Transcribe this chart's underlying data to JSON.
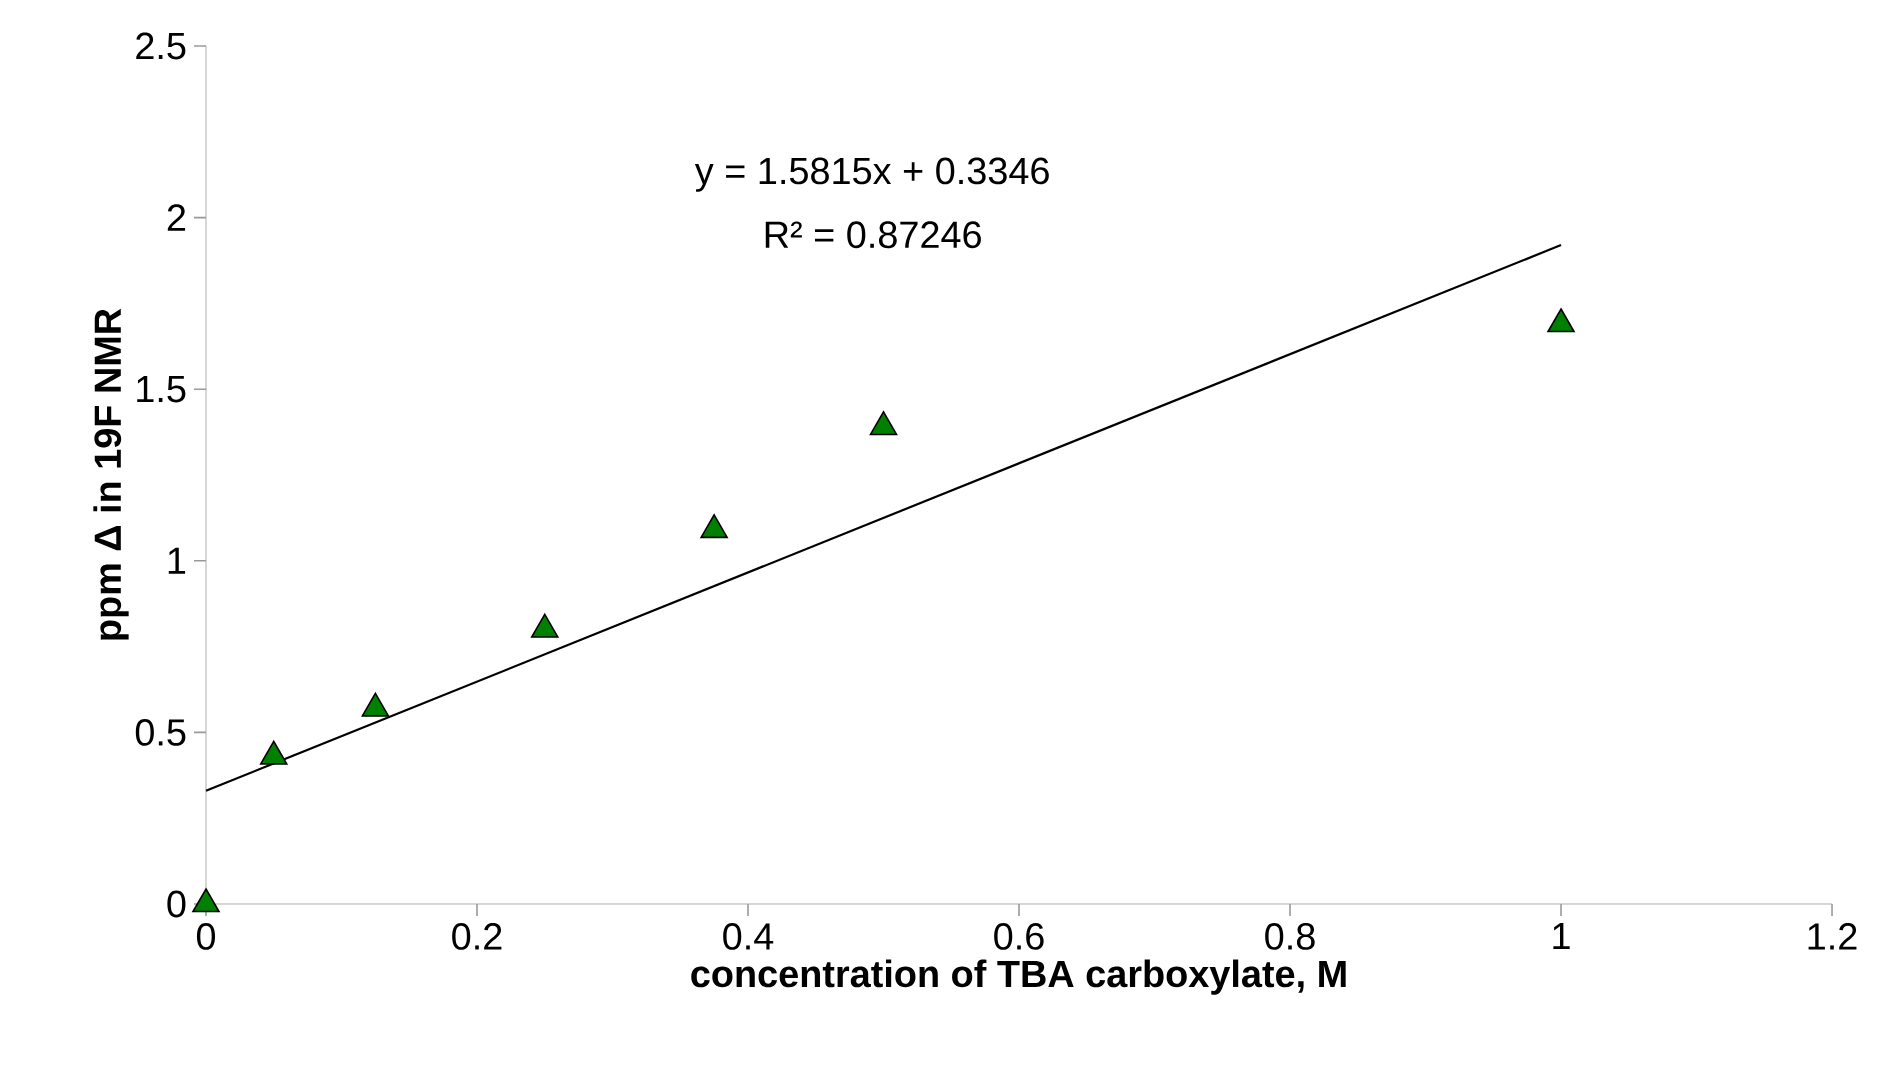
{
  "chart_data": {
    "type": "scatter",
    "xlabel": "concentration of TBA carboxylate, M",
    "ylabel": "ppm Δ in 19F NMR",
    "x": [
      0,
      0.05,
      0.125,
      0.25,
      0.375,
      0.5,
      1
    ],
    "series": [
      {
        "color": "#008000",
        "marker": "triangle",
        "values": [
          0,
          0.43,
          0.57,
          0.8,
          1.09,
          1.39,
          1.69
        ]
      },
      {
        "type": "line",
        "color": "#000000",
        "marker": "none",
        "x": [
          0,
          1
        ],
        "values": [
          0.33,
          1.92
        ]
      }
    ],
    "annotations": [
      "y = 1.5815x + 0.3346",
      "R² = 0.87246"
    ],
    "xlim": [
      0,
      1.2
    ],
    "xticks": [
      0,
      0.2,
      0.4,
      0.6,
      0.8,
      1,
      1.2
    ],
    "ylim": [
      0,
      2.5
    ],
    "yticks": [
      0,
      0.5,
      1,
      1.5,
      2,
      2.5
    ],
    "grid": false
  }
}
